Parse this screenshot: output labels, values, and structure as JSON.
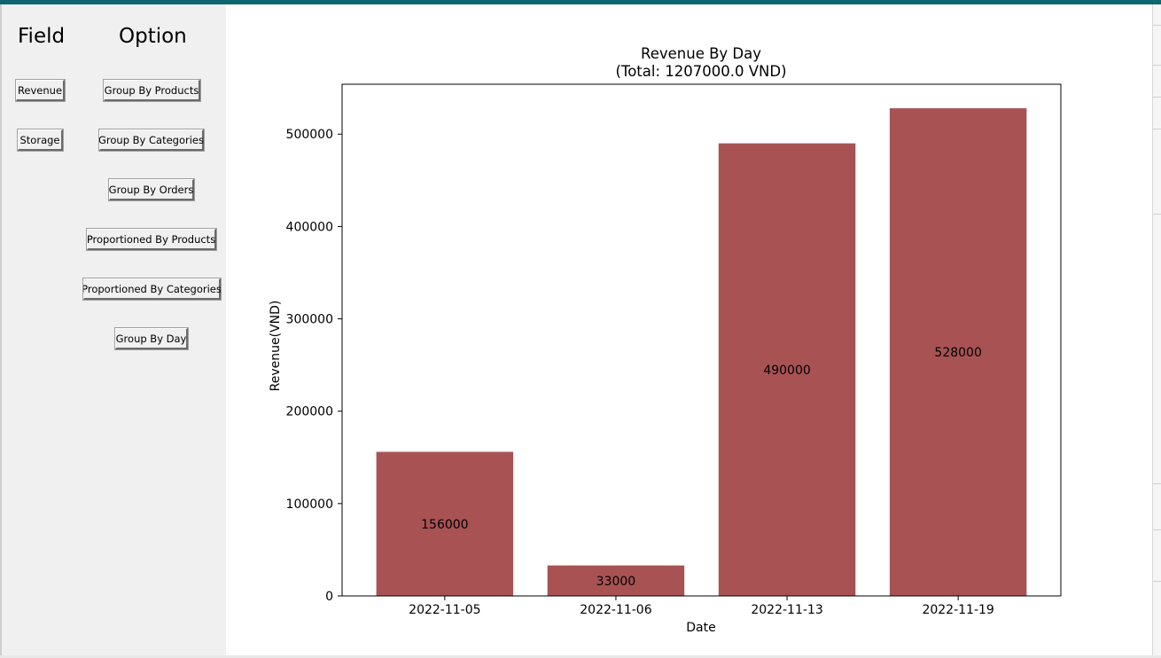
{
  "panel": {
    "field_header": "Field",
    "option_header": "Option",
    "field_buttons": [
      "Revenue",
      "Storage"
    ],
    "option_buttons": [
      "Group By Products",
      "Group By Categories",
      "Group By Orders",
      "Proportioned By Products",
      "Proportioned By Categories",
      "Group By Day"
    ]
  },
  "colors": {
    "bar": "#a85254",
    "panel_bg": "#f0f0f0",
    "window_accent": "#0d6670"
  },
  "chart_data": {
    "type": "bar",
    "title": "Revenue By Day",
    "subtitle": "(Total: 1207000.0 VND)",
    "xlabel": "Date",
    "ylabel": "Revenue(VND)",
    "categories": [
      "2022-11-05",
      "2022-11-06",
      "2022-11-13",
      "2022-11-19"
    ],
    "values": [
      156000,
      33000,
      490000,
      528000
    ],
    "data_labels": [
      "156000",
      "33000",
      "490000",
      "528000"
    ],
    "ylim": [
      0,
      554000
    ],
    "yticks": [
      0,
      100000,
      200000,
      300000,
      400000,
      500000
    ],
    "ytick_labels": [
      "0",
      "100000",
      "200000",
      "300000",
      "400000",
      "500000"
    ],
    "grid": false,
    "legend": "none"
  }
}
